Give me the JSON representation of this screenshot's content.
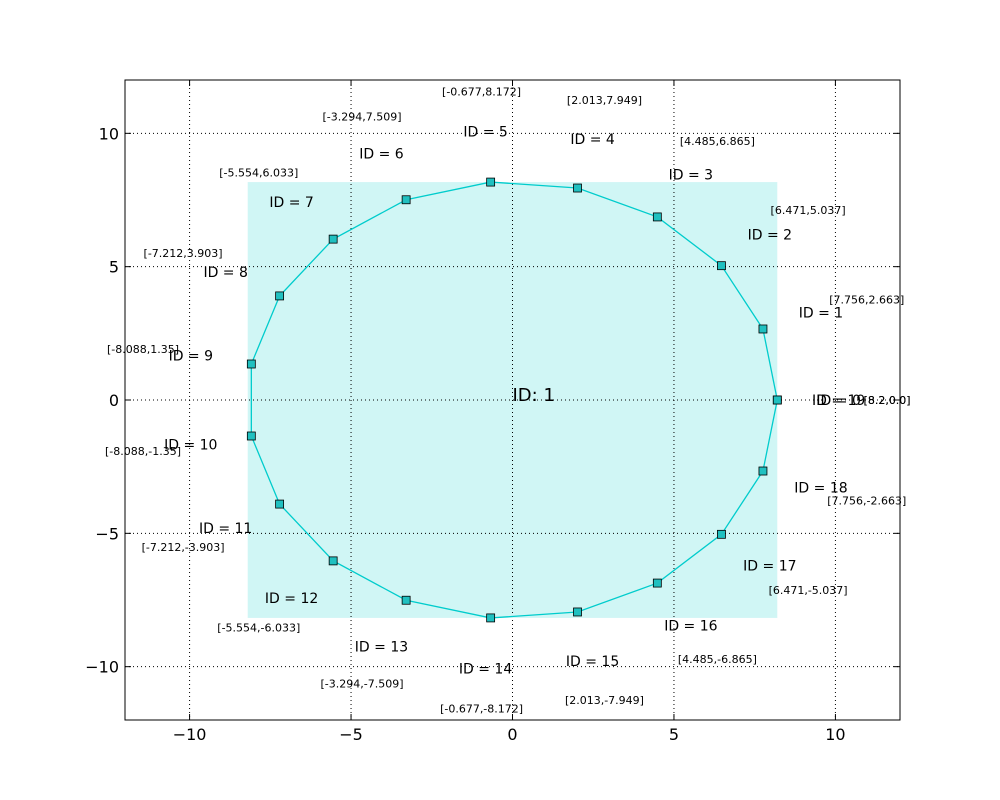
{
  "chart_data": {
    "type": "line",
    "title": "",
    "xlabel": "",
    "ylabel": "",
    "xlim": [
      -12,
      12
    ],
    "ylim": [
      -12,
      12
    ],
    "xticks": [
      -10,
      -5,
      0,
      5,
      10
    ],
    "yticks": [
      -10,
      -5,
      0,
      5,
      10
    ],
    "grid": true,
    "colors": {
      "line": "#00cccc",
      "marker_fill": "#20c0c0",
      "marker_edge": "#000000",
      "box_fill": "#b0f0ee"
    },
    "center_label": "ID: 1",
    "bounding_box": {
      "x": [
        -8.2,
        8.2
      ],
      "y": [
        -8.172,
        8.172
      ]
    },
    "points": [
      {
        "id": "ID = 0",
        "x": 8.2,
        "y": 0.0,
        "coord": "[8.2,0.0]"
      },
      {
        "id": "ID = 1",
        "x": 7.756,
        "y": 2.663,
        "coord": "[7.756,2.663]"
      },
      {
        "id": "ID = 2",
        "x": 6.471,
        "y": 5.037,
        "coord": "[6.471,5.037]"
      },
      {
        "id": "ID = 3",
        "x": 4.485,
        "y": 6.865,
        "coord": "[4.485,6.865]"
      },
      {
        "id": "ID = 4",
        "x": 2.013,
        "y": 7.949,
        "coord": "[2.013,7.949]"
      },
      {
        "id": "ID = 5",
        "x": -0.677,
        "y": 8.172,
        "coord": "[-0.677,8.172]"
      },
      {
        "id": "ID = 6",
        "x": -3.294,
        "y": 7.509,
        "coord": "[-3.294,7.509]"
      },
      {
        "id": "ID = 7",
        "x": -5.554,
        "y": 6.033,
        "coord": "[-5.554,6.033]"
      },
      {
        "id": "ID = 8",
        "x": -7.212,
        "y": 3.903,
        "coord": "[-7.212,3.903]"
      },
      {
        "id": "ID = 9",
        "x": -8.088,
        "y": 1.35,
        "coord": "[-8.088,1.35]"
      },
      {
        "id": "ID = 10",
        "x": -8.088,
        "y": -1.35,
        "coord": "[-8.088,-1.35]"
      },
      {
        "id": "ID = 11",
        "x": -7.212,
        "y": -3.903,
        "coord": "[-7.212,-3.903]"
      },
      {
        "id": "ID = 12",
        "x": -5.554,
        "y": -6.033,
        "coord": "[-5.554,-6.033]"
      },
      {
        "id": "ID = 13",
        "x": -3.294,
        "y": -7.509,
        "coord": "[-3.294,-7.509]"
      },
      {
        "id": "ID = 14",
        "x": -0.677,
        "y": -8.172,
        "coord": "[-0.677,-8.172]"
      },
      {
        "id": "ID = 15",
        "x": 2.013,
        "y": -7.949,
        "coord": "[2.013,-7.949]"
      },
      {
        "id": "ID = 16",
        "x": 4.485,
        "y": -6.865,
        "coord": "[4.485,-6.865]"
      },
      {
        "id": "ID = 17",
        "x": 6.471,
        "y": -5.037,
        "coord": "[6.471,-5.037]"
      },
      {
        "id": "ID = 18",
        "x": 7.756,
        "y": -2.663,
        "coord": "[7.756,-2.663]"
      },
      {
        "id": "ID = 19",
        "x": 8.2,
        "y": 0.0,
        "coord": "[8.2,0.0]"
      }
    ]
  }
}
